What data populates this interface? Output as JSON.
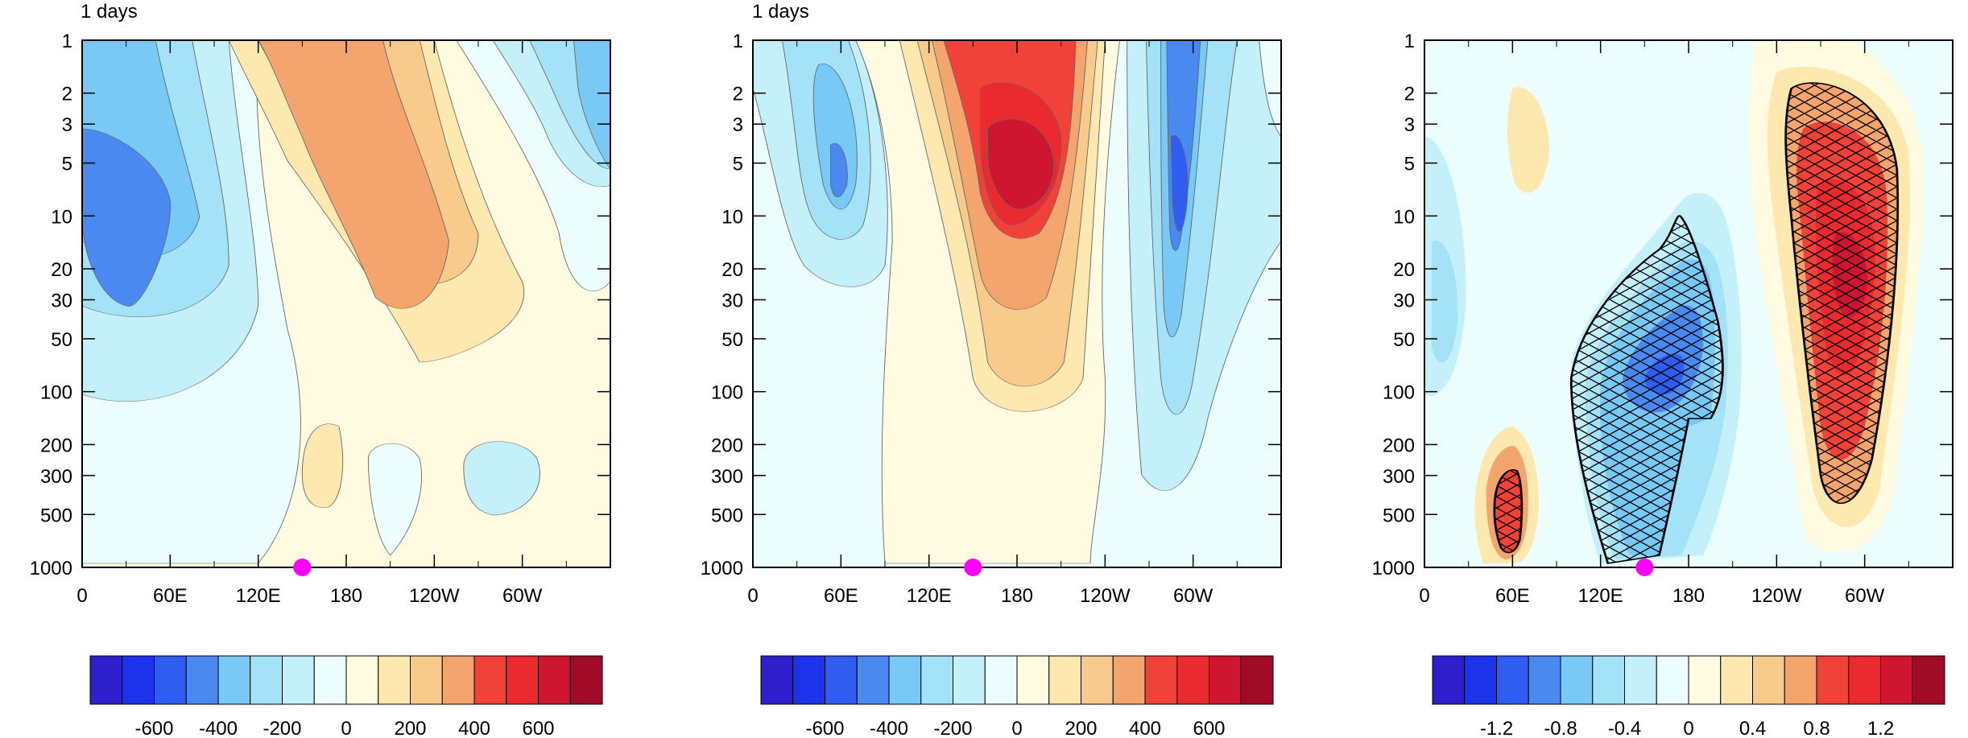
{
  "panels": [
    {
      "title": "1 days",
      "kind": "z"
    },
    {
      "title": "1 days",
      "kind": "z"
    },
    {
      "title": "",
      "kind": "diff"
    }
  ],
  "marker": {
    "lon": 150,
    "level": 1000,
    "color": "#ff00ff"
  },
  "palette": [
    "#2e1fcc",
    "#1d34ec",
    "#2f5cf1",
    "#4a8af0",
    "#79c9f7",
    "#a4e2f8",
    "#c4f1f9",
    "#ecfdfd",
    "#fefbe0",
    "#fde8b0",
    "#f8cb8c",
    "#f4a46d",
    "#f1423a",
    "#eb2a2f",
    "#cf1631",
    "#a10b28"
  ],
  "chart_data": [
    {
      "type": "contour",
      "title": "1 days",
      "x_ticks": [
        {
          "lon": 0,
          "label": "0"
        },
        {
          "lon": 60,
          "label": "60E"
        },
        {
          "lon": 120,
          "label": "120E"
        },
        {
          "lon": 180,
          "label": "180"
        },
        {
          "lon": 240,
          "label": "120W"
        },
        {
          "lon": 300,
          "label": "60W"
        }
      ],
      "y_ticks": [
        1,
        2,
        3,
        5,
        10,
        20,
        30,
        50,
        100,
        200,
        300,
        500,
        1000
      ],
      "y_scale": "log, reversed",
      "xlim": [
        0,
        360
      ],
      "ylim": [
        1,
        1000
      ],
      "colorbar_labels": [
        "-600",
        "-400",
        "-200",
        "0",
        "200",
        "400",
        "600"
      ],
      "features": [
        {
          "lon": 40,
          "level": 7,
          "value": -480
        },
        {
          "lon": 210,
          "level": 4,
          "value": 320
        },
        {
          "lon": 345,
          "level": 3,
          "value": -280
        },
        {
          "lon": 170,
          "level": 200,
          "value": 120
        },
        {
          "lon": 280,
          "level": 400,
          "value": -150
        },
        {
          "lon": 215,
          "level": 20,
          "value": 180
        }
      ]
    },
    {
      "type": "contour",
      "title": "1 days",
      "x_ticks": [
        {
          "lon": 0,
          "label": "0"
        },
        {
          "lon": 60,
          "label": "60E"
        },
        {
          "lon": 120,
          "label": "120E"
        },
        {
          "lon": 180,
          "label": "180"
        },
        {
          "lon": 240,
          "label": "120W"
        },
        {
          "lon": 300,
          "label": "60W"
        }
      ],
      "y_ticks": [
        1,
        2,
        3,
        5,
        10,
        20,
        30,
        50,
        100,
        200,
        300,
        500,
        1000
      ],
      "y_scale": "log, reversed",
      "xlim": [
        0,
        360
      ],
      "ylim": [
        1,
        1000
      ],
      "colorbar_labels": [
        "-600",
        "-400",
        "-200",
        "0",
        "200",
        "400",
        "600"
      ],
      "features": [
        {
          "lon": 60,
          "level": 8,
          "value": -330
        },
        {
          "lon": 180,
          "level": 8,
          "value": 680
        },
        {
          "lon": 290,
          "level": 10,
          "value": -560
        },
        {
          "lon": 165,
          "level": 400,
          "value": 180
        },
        {
          "lon": 100,
          "level": 800,
          "value": 60
        }
      ]
    },
    {
      "type": "contour",
      "title": "",
      "x_ticks": [
        {
          "lon": 0,
          "label": "0"
        },
        {
          "lon": 60,
          "label": "60E"
        },
        {
          "lon": 120,
          "label": "120E"
        },
        {
          "lon": 180,
          "label": "180"
        },
        {
          "lon": 240,
          "label": "120W"
        },
        {
          "lon": 300,
          "label": "60W"
        }
      ],
      "y_ticks": [
        1,
        2,
        3,
        5,
        10,
        20,
        30,
        50,
        100,
        200,
        300,
        500,
        1000
      ],
      "y_scale": "log, reversed",
      "xlim": [
        0,
        360
      ],
      "ylim": [
        1,
        1000
      ],
      "colorbar_labels": [
        "-1.2",
        "-0.8",
        "-0.4",
        "0",
        "0.4",
        "0.8",
        "1.2"
      ],
      "hatched_regions": [
        "around 60E near 400-1000",
        "120E-200 from 15 to 1000",
        "250-330 from 3 to 800"
      ],
      "features": [
        {
          "lon": 155,
          "level": 150,
          "value": -1.0
        },
        {
          "lon": 300,
          "level": 60,
          "value": 1.4
        },
        {
          "lon": 55,
          "level": 500,
          "value": 1.0
        },
        {
          "lon": 70,
          "level": 6,
          "value": 0.3
        },
        {
          "lon": 15,
          "level": 40,
          "value": -0.5
        }
      ]
    }
  ]
}
